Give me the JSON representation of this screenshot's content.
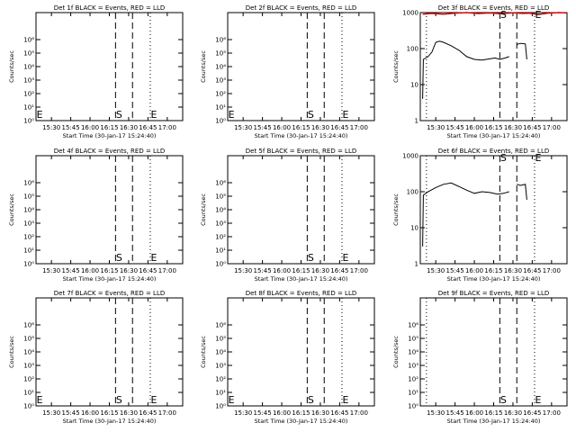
{
  "x_axis": {
    "ticks": [
      "15:30",
      "15:45",
      "16:00",
      "16:15",
      "16:30",
      "16:45",
      "17:00"
    ],
    "tick_hours": [
      15.5,
      15.75,
      16.0,
      16.25,
      16.5,
      16.75,
      17.0
    ],
    "range_hours": [
      15.3,
      17.2
    ],
    "label": "Start Time (30-Jan-17 15:24:40)"
  },
  "y_label": "Counts/sec",
  "marker_labels": {
    "start": "S",
    "end": "E"
  },
  "colors": {
    "events": "#000000",
    "lld": "#dd0000",
    "axes": "#000000"
  },
  "chart_data": [
    {
      "type": "line",
      "title": "Det 1f BLACK = Events, RED = LLD",
      "y_scale": "log",
      "ylim": [
        1,
        100000000
      ],
      "y_ticks": [
        "10⁰",
        "10¹",
        "10²",
        "10³",
        "10⁴",
        "10⁵",
        "10⁶"
      ],
      "y_tick_values": [
        1,
        10,
        100,
        1000,
        10000,
        100000,
        1000000
      ],
      "dotted_lines": [
        15.3,
        16.78
      ],
      "dashed_lines": [
        16.33,
        16.55
      ],
      "markers": [
        {
          "label": "E",
          "x": 15.33
        },
        {
          "label": "S",
          "x": 16.36
        },
        {
          "label": "E",
          "x": 16.81
        }
      ],
      "series": []
    },
    {
      "type": "line",
      "title": "Det 2f BLACK = Events, RED = LLD",
      "y_scale": "log",
      "ylim": [
        1,
        100000000
      ],
      "y_ticks": [
        "10⁰",
        "10¹",
        "10²",
        "10³",
        "10⁴",
        "10⁵",
        "10⁶"
      ],
      "y_tick_values": [
        1,
        10,
        100,
        1000,
        10000,
        100000,
        1000000
      ],
      "dotted_lines": [
        15.3,
        16.78
      ],
      "dashed_lines": [
        16.33,
        16.55
      ],
      "markers": [
        {
          "label": "E",
          "x": 15.33
        },
        {
          "label": "S",
          "x": 16.36
        },
        {
          "label": "E",
          "x": 16.81
        }
      ],
      "series": []
    },
    {
      "type": "line",
      "title": "Det 3f BLACK = Events, RED = LLD",
      "y_scale": "log",
      "ylim": [
        1,
        1000
      ],
      "y_ticks": [
        "1",
        "10",
        "100",
        "1000"
      ],
      "y_tick_values": [
        1,
        10,
        100,
        1000
      ],
      "dotted_lines": [
        15.38,
        16.78
      ],
      "dashed_lines": [
        16.33,
        16.55
      ],
      "markers": [
        {
          "label": "S",
          "x": 16.36
        },
        {
          "label": "E",
          "x": 16.81
        }
      ],
      "series": [
        {
          "color": "lld",
          "segments": [
            [
              [
                15.33,
                900
              ],
              [
                15.45,
                950
              ],
              [
                15.6,
                900
              ],
              [
                15.75,
                960
              ],
              [
                15.9,
                1000
              ],
              [
                16.05,
                940
              ],
              [
                16.2,
                980
              ],
              [
                16.35,
                930
              ],
              [
                16.5,
                990
              ],
              [
                16.62,
                950
              ],
              [
                16.72,
                960
              ],
              [
                16.82,
                880
              ],
              [
                16.95,
                960
              ],
              [
                17.1,
                1000
              ],
              [
                17.2,
                980
              ]
            ]
          ]
        },
        {
          "color": "events",
          "segments": [
            [
              [
                15.33,
                4
              ],
              [
                15.34,
                50
              ],
              [
                15.4,
                60
              ],
              [
                15.45,
                80
              ],
              [
                15.5,
                150
              ],
              [
                15.55,
                160
              ],
              [
                15.6,
                150
              ],
              [
                15.7,
                120
              ],
              [
                15.8,
                90
              ],
              [
                15.9,
                60
              ],
              [
                16.0,
                50
              ],
              [
                16.1,
                48
              ],
              [
                16.2,
                52
              ],
              [
                16.27,
                55
              ],
              [
                16.33,
                50
              ],
              [
                16.4,
                55
              ],
              [
                16.45,
                60
              ]
            ],
            [
              [
                16.55,
                130
              ],
              [
                16.6,
                140
              ],
              [
                16.66,
                135
              ],
              [
                16.68,
                50
              ]
            ]
          ]
        }
      ]
    },
    {
      "type": "line",
      "title": "Det 4f BLACK = Events, RED = LLD",
      "y_scale": "log",
      "ylim": [
        1,
        100000000
      ],
      "y_ticks": [
        "10⁰",
        "10¹",
        "10²",
        "10³",
        "10⁴",
        "10⁵",
        "10⁶"
      ],
      "y_tick_values": [
        1,
        10,
        100,
        1000,
        10000,
        100000,
        1000000
      ],
      "dotted_lines": [
        15.3,
        16.78
      ],
      "dashed_lines": [
        16.33,
        16.55
      ],
      "markers": [
        {
          "label": "S",
          "x": 16.36
        },
        {
          "label": "E",
          "x": 16.81
        }
      ],
      "series": []
    },
    {
      "type": "line",
      "title": "Det 5f BLACK = Events, RED = LLD",
      "y_scale": "log",
      "ylim": [
        1,
        100000000
      ],
      "y_ticks": [
        "10⁰",
        "10¹",
        "10²",
        "10³",
        "10⁴",
        "10⁵",
        "10⁶"
      ],
      "y_tick_values": [
        1,
        10,
        100,
        1000,
        10000,
        100000,
        1000000
      ],
      "dotted_lines": [
        15.3,
        16.78
      ],
      "dashed_lines": [
        16.33,
        16.55
      ],
      "markers": [
        {
          "label": "S",
          "x": 16.36
        },
        {
          "label": "E",
          "x": 16.81
        }
      ],
      "series": []
    },
    {
      "type": "line",
      "title": "Det 6f BLACK = Events, RED = LLD",
      "y_scale": "log",
      "ylim": [
        1,
        1000
      ],
      "y_ticks": [
        "1",
        "10",
        "100",
        "1000"
      ],
      "y_tick_values": [
        1,
        10,
        100,
        1000
      ],
      "dotted_lines": [
        15.38,
        16.78
      ],
      "dashed_lines": [
        16.33,
        16.55
      ],
      "markers": [
        {
          "label": "S",
          "x": 16.36
        },
        {
          "label": "E",
          "x": 16.81
        }
      ],
      "series": [
        {
          "color": "events",
          "segments": [
            [
              [
                15.33,
                3
              ],
              [
                15.34,
                80
              ],
              [
                15.4,
                100
              ],
              [
                15.5,
                130
              ],
              [
                15.6,
                160
              ],
              [
                15.7,
                175
              ],
              [
                15.8,
                140
              ],
              [
                15.9,
                110
              ],
              [
                16.0,
                90
              ],
              [
                16.1,
                100
              ],
              [
                16.2,
                95
              ],
              [
                16.3,
                85
              ],
              [
                16.38,
                90
              ],
              [
                16.45,
                100
              ]
            ],
            [
              [
                16.55,
                160
              ],
              [
                16.6,
                150
              ],
              [
                16.66,
                160
              ],
              [
                16.68,
                60
              ]
            ]
          ]
        }
      ]
    },
    {
      "type": "line",
      "title": "Det 7f BLACK = Events, RED = LLD",
      "y_scale": "log",
      "ylim": [
        1,
        100000000
      ],
      "y_ticks": [
        "10⁰",
        "10¹",
        "10²",
        "10³",
        "10⁴",
        "10⁵",
        "10⁶"
      ],
      "y_tick_values": [
        1,
        10,
        100,
        1000,
        10000,
        100000,
        1000000
      ],
      "dotted_lines": [
        15.3,
        16.78
      ],
      "dashed_lines": [
        16.33,
        16.55
      ],
      "markers": [
        {
          "label": "E",
          "x": 15.33
        },
        {
          "label": "S",
          "x": 16.36
        },
        {
          "label": "E",
          "x": 16.81
        }
      ],
      "series": []
    },
    {
      "type": "line",
      "title": "Det 8f BLACK = Events, RED = LLD",
      "y_scale": "log",
      "ylim": [
        1,
        100000000
      ],
      "y_ticks": [
        "10⁰",
        "10¹",
        "10²",
        "10³",
        "10⁴",
        "10⁵",
        "10⁶"
      ],
      "y_tick_values": [
        1,
        10,
        100,
        1000,
        10000,
        100000,
        1000000
      ],
      "dotted_lines": [
        15.3,
        16.78
      ],
      "dashed_lines": [
        16.33,
        16.55
      ],
      "markers": [
        {
          "label": "E",
          "x": 15.33
        },
        {
          "label": "S",
          "x": 16.36
        },
        {
          "label": "E",
          "x": 16.81
        }
      ],
      "series": []
    },
    {
      "type": "line",
      "title": "Det 9f BLACK = Events, RED = LLD",
      "y_scale": "log",
      "ylim": [
        1,
        100000000
      ],
      "y_ticks": [
        "10⁰",
        "10¹",
        "10²",
        "10³",
        "10⁴",
        "10⁵",
        "10⁶"
      ],
      "y_tick_values": [
        1,
        10,
        100,
        1000,
        10000,
        100000,
        1000000
      ],
      "dotted_lines": [
        15.38,
        16.78
      ],
      "dashed_lines": [
        16.33,
        16.55
      ],
      "markers": [
        {
          "label": "S",
          "x": 16.36
        },
        {
          "label": "E",
          "x": 16.81
        }
      ],
      "series": []
    }
  ]
}
